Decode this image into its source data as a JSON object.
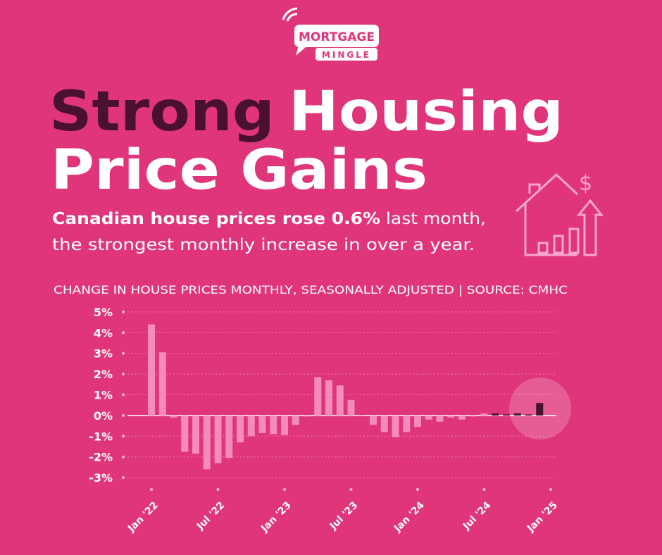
{
  "logo": {
    "line1": "MORTGAGE",
    "line2": "MINGLE"
  },
  "headline": {
    "word1": "Strong",
    "word2": "Housing",
    "line2": "Price Gains"
  },
  "subtitle": {
    "bold": "Canadian house prices rose 0.6%",
    "rest1": " last month,",
    "line2": "the strongest monthly increase in over a year."
  },
  "chart_data": {
    "type": "bar",
    "title": "CHANGE IN HOUSE PRICES MONTHLY, SEASONALLY ADJUSTED | SOURCE: CMHC",
    "values": [
      4.4,
      3.05,
      -0.1,
      -1.75,
      -1.85,
      -2.6,
      -2.3,
      -2.05,
      -1.3,
      -1.0,
      -0.85,
      -0.9,
      -0.95,
      -0.45,
      -0.05,
      1.85,
      1.7,
      1.45,
      0.75,
      0,
      -0.45,
      -0.8,
      -1.05,
      -0.8,
      -0.55,
      -0.2,
      -0.3,
      -0.1,
      -0.2,
      -0.05,
      0.1,
      0.1,
      0.05,
      0.1,
      0.05,
      0.6
    ],
    "colors": [
      "#f48bb8",
      "#f48bb8",
      "#f48bb8",
      "#f48bb8",
      "#f48bb8",
      "#f48bb8",
      "#f48bb8",
      "#f48bb8",
      "#f48bb8",
      "#f48bb8",
      "#f48bb8",
      "#f48bb8",
      "#f48bb8",
      "#f48bb8",
      "#f48bb8",
      "#f48bb8",
      "#f48bb8",
      "#f48bb8",
      "#f48bb8",
      "#f48bb8",
      "#f48bb8",
      "#f48bb8",
      "#f48bb8",
      "#f48bb8",
      "#f48bb8",
      "#f48bb8",
      "#f48bb8",
      "#f48bb8",
      "#f48bb8",
      "#f48bb8",
      "#f48bb8",
      "#4a1030",
      "#4a1030",
      "#4a1030",
      "#4a1030",
      "#4a1030"
    ],
    "xticks": [
      "Jan '22",
      "Jul '22",
      "Jan '23",
      "Jul '23",
      "Jan '24",
      "Jul '24",
      "Jan '25"
    ],
    "ylim": [
      -3.2,
      5.2
    ],
    "yticks": [
      {
        "value": 5,
        "label": "5%"
      },
      {
        "value": 4,
        "label": "4%"
      },
      {
        "value": 3,
        "label": "3%"
      },
      {
        "value": 2,
        "label": "2%"
      },
      {
        "value": 1,
        "label": "1%"
      },
      {
        "value": 0,
        "label": "0%"
      },
      {
        "value": -1,
        "label": "-1%"
      },
      {
        "value": -2,
        "label": "-2%"
      },
      {
        "value": -3,
        "label": "-3%"
      }
    ],
    "grid": true
  }
}
